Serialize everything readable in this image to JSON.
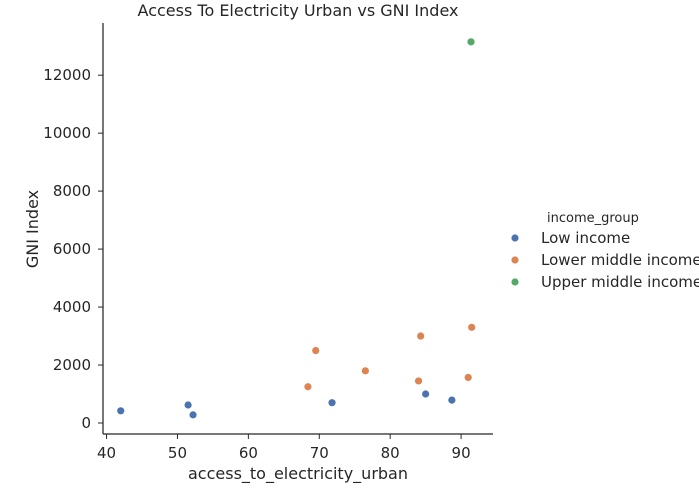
{
  "chart_data": {
    "type": "scatter",
    "title": "Access To Electricity Urban vs GNI Index",
    "xlabel": "access_to_electricity_urban",
    "ylabel": "GNI Index",
    "xlim": [
      39.5,
      94.5
    ],
    "ylim": [
      -380,
      13800
    ],
    "xticks": [
      40,
      50,
      60,
      70,
      80,
      90
    ],
    "yticks": [
      0,
      2000,
      4000,
      6000,
      8000,
      10000,
      12000
    ],
    "grid": false,
    "legend": {
      "title": "income_group",
      "position": "right"
    },
    "series": [
      {
        "name": "Low income",
        "color": "#4C72B0",
        "points": [
          {
            "x": 42.0,
            "y": 420
          },
          {
            "x": 51.5,
            "y": 620
          },
          {
            "x": 52.2,
            "y": 280
          },
          {
            "x": 71.8,
            "y": 700
          },
          {
            "x": 85.0,
            "y": 1000
          },
          {
            "x": 88.7,
            "y": 790
          }
        ]
      },
      {
        "name": "Lower middle income",
        "color": "#DD8452",
        "points": [
          {
            "x": 68.4,
            "y": 1250
          },
          {
            "x": 69.5,
            "y": 2500
          },
          {
            "x": 76.5,
            "y": 1800
          },
          {
            "x": 84.0,
            "y": 1450
          },
          {
            "x": 84.3,
            "y": 3000
          },
          {
            "x": 91.0,
            "y": 1570
          },
          {
            "x": 91.5,
            "y": 3300
          }
        ]
      },
      {
        "name": "Upper middle income",
        "color": "#55A868",
        "points": [
          {
            "x": 91.4,
            "y": 13150
          }
        ]
      }
    ]
  }
}
